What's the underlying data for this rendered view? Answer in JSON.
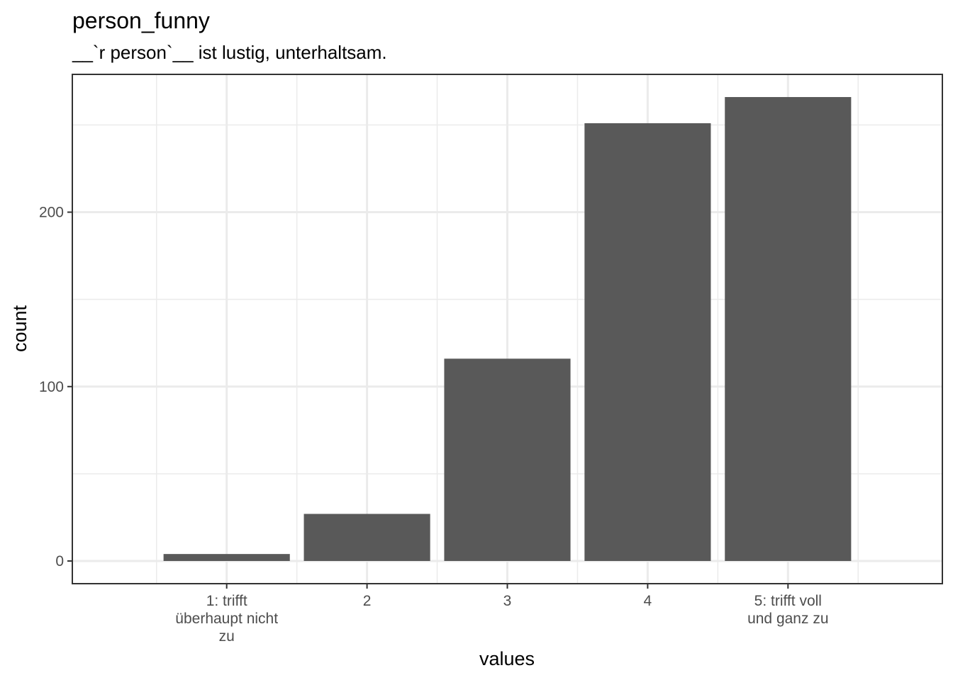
{
  "chart_data": {
    "type": "bar",
    "title": "person_funny",
    "subtitle": "__`r person`__ ist lustig, unterhaltsam.",
    "xlabel": "values",
    "ylabel": "count",
    "categories": [
      [
        "1: trifft",
        "überhaupt nicht",
        "zu"
      ],
      [
        "2"
      ],
      [
        "3"
      ],
      [
        "4"
      ],
      [
        "5: trifft voll",
        "und ganz zu"
      ]
    ],
    "values": [
      4,
      27,
      116,
      251,
      266
    ],
    "ylim": [
      -13,
      279
    ],
    "yticks": [
      0,
      100,
      200
    ],
    "grid": true,
    "bar_color": "#595959",
    "grid_color": "#ebebeb",
    "panel_border_color": "#333333"
  }
}
